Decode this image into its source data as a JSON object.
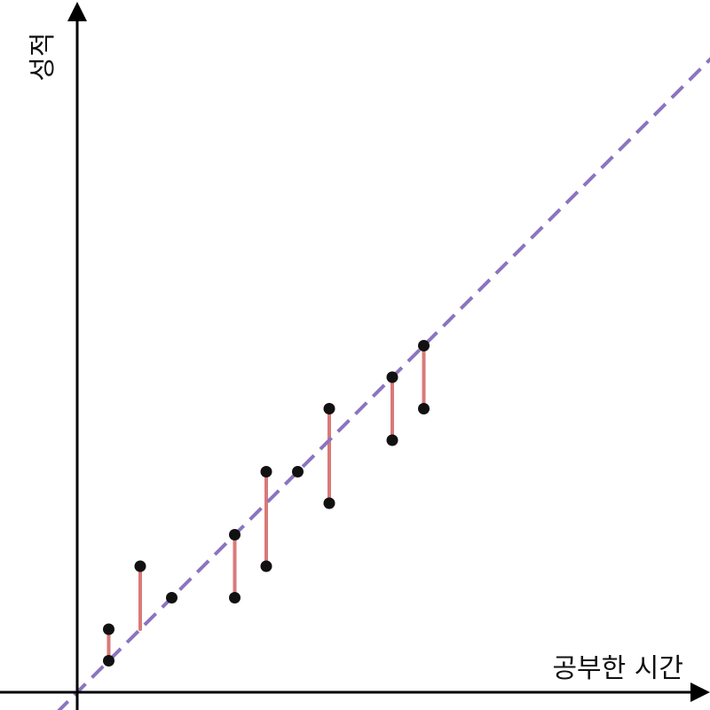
{
  "chart_data": {
    "type": "scatter",
    "title": "",
    "xlabel": "공부한 시간",
    "ylabel": "성적",
    "xlim": [
      0,
      20
    ],
    "ylim": [
      0,
      20
    ],
    "grid": false,
    "legend": "none",
    "series": [
      {
        "points": [
          {
            "x": 1,
            "y": 1
          },
          {
            "x": 1,
            "y": 2
          },
          {
            "x": 2,
            "y": 4
          },
          {
            "x": 3,
            "y": 3
          },
          {
            "x": 5,
            "y": 3
          },
          {
            "x": 5,
            "y": 5
          },
          {
            "x": 6,
            "y": 4
          },
          {
            "x": 6,
            "y": 7
          },
          {
            "x": 7,
            "y": 7
          },
          {
            "x": 8,
            "y": 6
          },
          {
            "x": 8,
            "y": 9
          },
          {
            "x": 10,
            "y": 8
          },
          {
            "x": 10,
            "y": 10
          },
          {
            "x": 11,
            "y": 9
          },
          {
            "x": 11,
            "y": 11
          }
        ]
      }
    ],
    "regression_line": {
      "slope": 1,
      "intercept": 0
    },
    "residual_segments": [
      {
        "x": 1,
        "y1": 1,
        "y2": 2
      },
      {
        "x": 2,
        "y1": 2,
        "y2": 4
      },
      {
        "x": 5,
        "y1": 3,
        "y2": 5
      },
      {
        "x": 6,
        "y1": 4,
        "y2": 7
      },
      {
        "x": 8,
        "y1": 6,
        "y2": 9
      },
      {
        "x": 10,
        "y1": 8,
        "y2": 10
      },
      {
        "x": 11,
        "y1": 9,
        "y2": 11
      }
    ],
    "colors": {
      "points": "#111111",
      "regression_line": "#8c74c0",
      "residuals": "#d97a78",
      "axes": "#000000"
    }
  }
}
